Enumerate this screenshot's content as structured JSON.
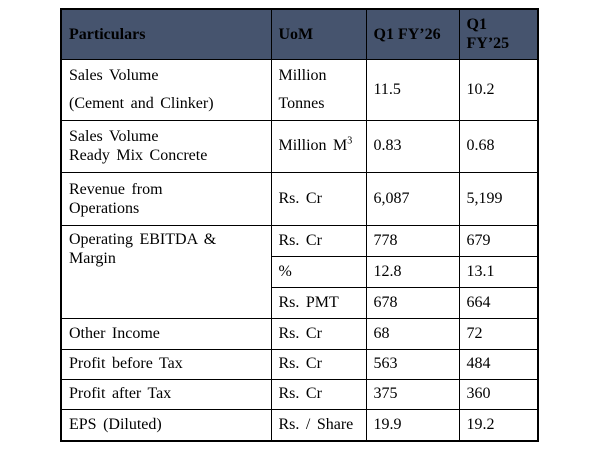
{
  "colors": {
    "header_bg": "#46546e",
    "border": "#000000",
    "text": "#000000",
    "page_bg": "#ffffff"
  },
  "table": {
    "columns": [
      {
        "label": "Particulars"
      },
      {
        "label": "UoM"
      },
      {
        "label": "Q1 FY’26"
      },
      {
        "label": "Q1 FY’25"
      }
    ],
    "rows": [
      {
        "particulars_lines": [
          "Sales Volume",
          "(Cement and Clinker)"
        ],
        "uom_lines": [
          "Million",
          "Tonnes"
        ],
        "q1_fy26": "11.5",
        "q1_fy25": "10.2"
      },
      {
        "particulars_lines": [
          "Sales Volume",
          "Ready Mix Concrete"
        ],
        "uom_base": "Million M",
        "uom_superscript": "3",
        "q1_fy26": "0.83",
        "q1_fy25": "0.68"
      },
      {
        "particulars_lines": [
          "Revenue from",
          "Operations"
        ],
        "uom": "Rs. Cr",
        "q1_fy26": "6,087",
        "q1_fy25": "5,199"
      },
      {
        "particulars_lines": [
          "Operating EBITDA &",
          "Margin"
        ],
        "subrows": [
          {
            "uom": "Rs. Cr",
            "q1_fy26": "778",
            "q1_fy25": "679"
          },
          {
            "uom": "%",
            "q1_fy26": "12.8",
            "q1_fy25": "13.1"
          },
          {
            "uom": "Rs. PMT",
            "q1_fy26": "678",
            "q1_fy25": "664"
          }
        ]
      },
      {
        "particulars": "Other Income",
        "uom": "Rs. Cr",
        "q1_fy26": "68",
        "q1_fy25": "72"
      },
      {
        "particulars": "Profit before Tax",
        "uom": "Rs. Cr",
        "q1_fy26": "563",
        "q1_fy25": "484"
      },
      {
        "particulars": "Profit after Tax",
        "uom": "Rs. Cr",
        "q1_fy26": "375",
        "q1_fy25": "360"
      },
      {
        "particulars": "EPS (Diluted)",
        "uom": "Rs. / Share",
        "q1_fy26": "19.9",
        "q1_fy25": "19.2"
      }
    ]
  }
}
